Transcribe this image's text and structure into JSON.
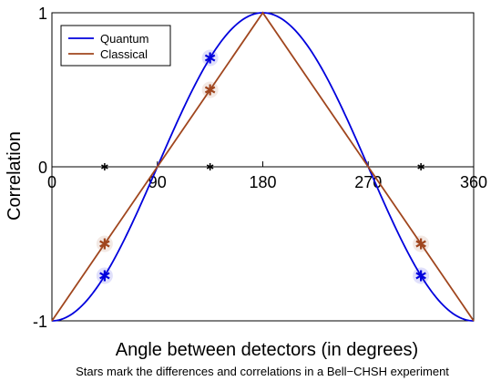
{
  "chart_data": {
    "type": "line",
    "title": "",
    "xlabel": "Angle between detectors (in degrees)",
    "ylabel": "Correlation",
    "caption": "Stars mark the differences and correlations in a Bell−CHSH experiment",
    "xlim": [
      0,
      360
    ],
    "ylim": [
      -1,
      1
    ],
    "xticks": [
      "0",
      "90",
      "180",
      "270",
      "360"
    ],
    "yticks": [
      "-1",
      "0",
      "1"
    ],
    "grid": false,
    "legend_position": "top-left",
    "series": [
      {
        "name": "Quantum",
        "color": "#0000dd",
        "x": [
          0,
          15,
          30,
          45,
          60,
          75,
          90,
          105,
          120,
          135,
          150,
          165,
          180,
          195,
          210,
          225,
          240,
          255,
          270,
          285,
          300,
          315,
          330,
          345,
          360
        ],
        "y": [
          -1,
          -0.966,
          -0.866,
          -0.707,
          -0.5,
          -0.259,
          0,
          0.259,
          0.5,
          0.707,
          0.866,
          0.966,
          1,
          0.966,
          0.866,
          0.707,
          0.5,
          0.259,
          0,
          -0.259,
          -0.5,
          -0.707,
          -0.866,
          -0.966,
          -1
        ]
      },
      {
        "name": "Classical",
        "color": "#a0461e",
        "x": [
          0,
          180,
          360
        ],
        "y": [
          -1,
          1,
          -1
        ]
      }
    ],
    "star_markers": [
      {
        "group": "quantum",
        "color": "#0000dd",
        "points": [
          {
            "x": 45,
            "y": -0.707
          },
          {
            "x": 135,
            "y": 0.707
          },
          {
            "x": 315,
            "y": -0.707
          }
        ]
      },
      {
        "group": "classical",
        "color": "#a0461e",
        "points": [
          {
            "x": 45,
            "y": -0.5
          },
          {
            "x": 135,
            "y": 0.5
          },
          {
            "x": 315,
            "y": -0.5
          }
        ]
      },
      {
        "group": "difference",
        "color": "#000000",
        "points": [
          {
            "x": 45,
            "y": 0
          },
          {
            "x": 135,
            "y": 0
          },
          {
            "x": 315,
            "y": 0
          }
        ]
      }
    ]
  }
}
